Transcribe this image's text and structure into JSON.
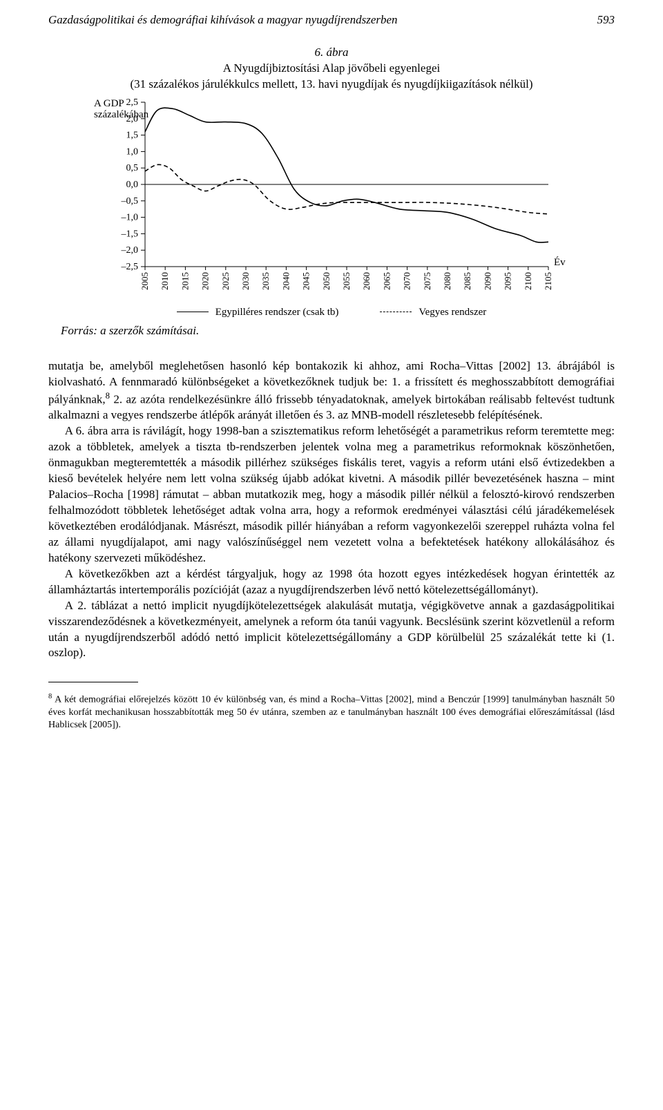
{
  "header": {
    "running_title": "Gazdaságpolitikai és demográfiai kihívások a magyar nyugdíjrendszerben",
    "page_number": "593"
  },
  "figure": {
    "number": "6. ábra",
    "title_line1": "A Nyugdíjbiztosítási Alap jövőbeli egyenlegei",
    "title_line2": "(31 százalékos járulékkulcs mellett, 13. havi nyugdíjak és nyugdíjkiigazítások nélkül)",
    "y_axis_label_1": "A GDP",
    "y_axis_label_2": "százalékában",
    "x_axis_label": "Év",
    "y_ticks": [
      "2,5",
      "2,0",
      "1,5",
      "1,0",
      "0,5",
      "0,0",
      "–0,5",
      "–1,0",
      "–1,5",
      "–2,0",
      "–2,5"
    ],
    "x_ticks": [
      "2005",
      "2010",
      "2015",
      "2020",
      "2025",
      "2030",
      "2035",
      "2040",
      "2045",
      "2050",
      "2055",
      "2060",
      "2065",
      "2070",
      "2075",
      "2080",
      "2085",
      "2090",
      "2095",
      "2100",
      "2105"
    ],
    "legend": {
      "solid": "Egypilléres rendszer (csak tb)",
      "dashed": "Vegyes rendszer"
    },
    "source": "Forrás: a szerzők számításai.",
    "chart": {
      "type": "line",
      "xlim": [
        2005,
        2105
      ],
      "ylim": [
        -2.5,
        2.5
      ],
      "background_color": "#ffffff",
      "axis_color": "#000000",
      "line_width": 1.6,
      "series": [
        {
          "name": "solid",
          "style": "solid",
          "color": "#000000",
          "data": [
            [
              2005,
              1.6
            ],
            [
              2008,
              2.25
            ],
            [
              2012,
              2.3
            ],
            [
              2016,
              2.1
            ],
            [
              2020,
              1.9
            ],
            [
              2025,
              1.9
            ],
            [
              2030,
              1.85
            ],
            [
              2034,
              1.55
            ],
            [
              2038,
              0.8
            ],
            [
              2042,
              -0.15
            ],
            [
              2046,
              -0.55
            ],
            [
              2050,
              -0.65
            ],
            [
              2054,
              -0.5
            ],
            [
              2058,
              -0.45
            ],
            [
              2062,
              -0.55
            ],
            [
              2068,
              -0.75
            ],
            [
              2074,
              -0.8
            ],
            [
              2080,
              -0.85
            ],
            [
              2086,
              -1.05
            ],
            [
              2092,
              -1.35
            ],
            [
              2098,
              -1.55
            ],
            [
              2102,
              -1.75
            ],
            [
              2105,
              -1.75
            ]
          ]
        },
        {
          "name": "dashed",
          "style": "dashed",
          "color": "#000000",
          "data": [
            [
              2005,
              0.4
            ],
            [
              2008,
              0.6
            ],
            [
              2011,
              0.5
            ],
            [
              2014,
              0.15
            ],
            [
              2017,
              -0.05
            ],
            [
              2020,
              -0.2
            ],
            [
              2023,
              -0.05
            ],
            [
              2026,
              0.1
            ],
            [
              2029,
              0.15
            ],
            [
              2032,
              0.0
            ],
            [
              2036,
              -0.5
            ],
            [
              2040,
              -0.75
            ],
            [
              2044,
              -0.7
            ],
            [
              2048,
              -0.6
            ],
            [
              2052,
              -0.55
            ],
            [
              2056,
              -0.55
            ],
            [
              2060,
              -0.55
            ],
            [
              2068,
              -0.55
            ],
            [
              2076,
              -0.55
            ],
            [
              2084,
              -0.6
            ],
            [
              2092,
              -0.7
            ],
            [
              2100,
              -0.85
            ],
            [
              2105,
              -0.9
            ]
          ]
        }
      ]
    }
  },
  "body": {
    "p1": "mutatja be, amelyből meglehetősen hasonló kép bontakozik ki ahhoz, ami Rocha–Vittas [2002] 13. ábrájából is kiolvasható. A fennmaradó különbségeket a következőknek tudjuk be: 1. a frissített és meghosszabbított demográfiai pályánknak,",
    "p1_sup": "8",
    "p1b": " 2. az azóta rendelkezésünkre álló frissebb tényadatoknak, amelyek birtokában reálisabb feltevést tudtunk alkalmazni a vegyes rendszerbe átlépők arányát illetően és 3. az MNB-modell részletesebb felépítésének.",
    "p2": "A 6. ábra arra is rávilágít, hogy 1998-ban a szisztematikus reform lehetőségét a parametrikus reform teremtette meg: azok a többletek, amelyek a tiszta tb-rendszerben jelentek volna meg a parametrikus reformoknak köszönhetően, önmagukban megteremtették a második pillérhez szükséges fiskális teret, vagyis a reform utáni első évtizedekben a kieső bevételek helyére nem lett volna szükség újabb adókat kivetni. A második pillér bevezetésének haszna – mint Palacios–Rocha [1998] rámutat – abban mutatkozik meg, hogy a második pillér nélkül a felosztó-kirovó rendszerben felhalmozódott többletek lehetőséget adtak volna arra, hogy a reformok eredményei választási célú járadékemelések következtében erodálódjanak. Másrészt, második pillér hiányában a reform vagyonkezelői szereppel ruházta volna fel az állami nyugdíjalapot, ami nagy valószínűséggel nem vezetett volna a befektetések hatékony allokálásához és hatékony szervezeti működéshez.",
    "p3": "A következőkben azt a kérdést tárgyaljuk, hogy az 1998 óta hozott egyes intézkedések hogyan érintették az államháztartás intertemporális pozícióját (azaz a nyugdíjrendszerben lévő nettó kötelezettségállományt).",
    "p4": "A 2. táblázat a nettó implicit nyugdíjkötelezettségek alakulását mutatja, végigkövetve annak a gazdaságpolitikai visszarendeződésnek a következményeit, amelynek a reform óta tanúi vagyunk. Becslésünk szerint közvetlenül a reform után a nyugdíjrendszerből adódó nettó implicit kötelezettségállomány a GDP körülbelül 25 százalékát tette ki (1. oszlop)."
  },
  "footnote": {
    "num": "8",
    "text": " A két demográfiai előrejelzés között 10 év különbség van, és mind a Rocha–Vittas [2002], mind a Benczúr [1999] tanulmányban használt 50 éves korfát mechanikusan hosszabbították meg 50 év utánra, szemben az e tanulmányban használt 100 éves demográfiai előreszámítással (lásd Hablicsek [2005])."
  }
}
